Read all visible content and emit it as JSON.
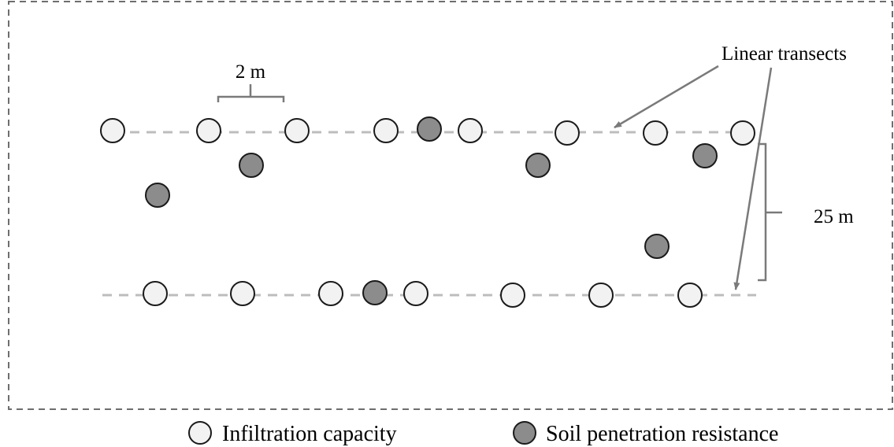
{
  "labels": {
    "spacing": "2 m",
    "distance": "25 m",
    "transects": "Linear transects"
  },
  "legend": {
    "infiltration": "Infiltration capacity",
    "penetration": "Soil penetration resistance"
  },
  "colors": {
    "border": "#6e6e6e",
    "transect": "#bdbdbd",
    "infiltration_fill": "#f2f2f2",
    "penetration_fill": "#8c8c8c",
    "stroke": "#1a1a1a",
    "arrow": "#7a7a7a"
  }
}
